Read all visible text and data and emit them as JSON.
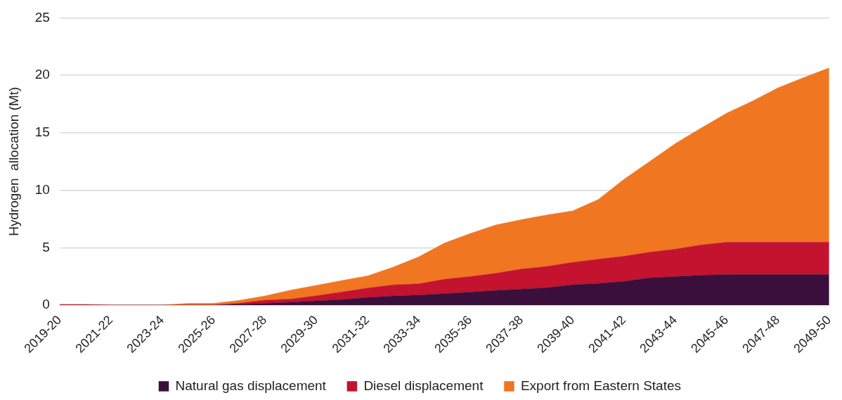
{
  "chart_data": {
    "type": "area",
    "stacked": true,
    "ylabel": "Hydrogen  allocation (Mt)",
    "categories": [
      "2019-20",
      null,
      "2021-22",
      null,
      "2023-24",
      null,
      "2025-26",
      null,
      "2027-28",
      null,
      "2029-30",
      null,
      "2031-32",
      null,
      "2033-34",
      null,
      "2035-36",
      null,
      "2037-38",
      null,
      "2039-40",
      null,
      "2041-42",
      null,
      "2043-44",
      null,
      "2045-46",
      null,
      "2047-48",
      null,
      "2049-50"
    ],
    "series": [
      {
        "name": "Natural gas displacement",
        "color": "#3a0f3b",
        "values": [
          0,
          0,
          0,
          0,
          0,
          0,
          0,
          0.08,
          0.15,
          0.25,
          0.37,
          0.48,
          0.66,
          0.79,
          0.87,
          1.0,
          1.13,
          1.27,
          1.39,
          1.51,
          1.77,
          1.89,
          2.06,
          2.37,
          2.48,
          2.6,
          2.65,
          2.65,
          2.65,
          2.65,
          2.65
        ]
      },
      {
        "name": "Diesel displacement",
        "color": "#c3132f",
        "values": [
          0.05,
          0.05,
          0,
          0,
          0,
          0,
          0,
          0.09,
          0.28,
          0.27,
          0.44,
          0.66,
          0.82,
          0.97,
          0.98,
          1.25,
          1.35,
          1.5,
          1.74,
          1.86,
          1.95,
          2.11,
          2.19,
          2.23,
          2.39,
          2.63,
          2.82,
          2.82,
          2.82,
          2.82,
          2.82
        ]
      },
      {
        "name": "Export from Eastern States",
        "color": "#f07622",
        "values": [
          0,
          0,
          0,
          0,
          0,
          0.15,
          0.15,
          0.24,
          0.37,
          0.78,
          0.91,
          1.0,
          1.06,
          1.54,
          2.35,
          3.15,
          3.75,
          4.2,
          4.31,
          4.48,
          4.48,
          5.2,
          6.7,
          7.9,
          9.18,
          10.17,
          11.23,
          12.28,
          13.43,
          14.33,
          15.18
        ]
      }
    ],
    "ylim": [
      0,
      25
    ],
    "yticks": [
      0,
      5,
      10,
      15,
      20,
      25
    ],
    "grid": "y",
    "legend": "bottom"
  }
}
